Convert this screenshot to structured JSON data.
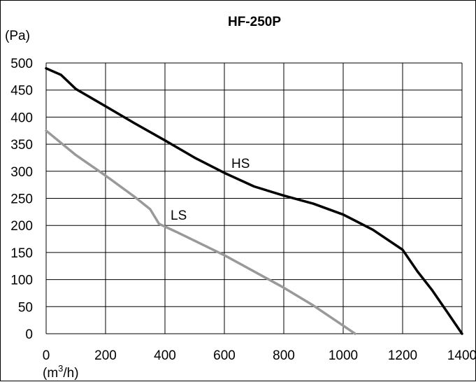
{
  "chart_data": {
    "type": "line",
    "title": "HF-250P",
    "ylabel": "(Pa)",
    "xlabel_base": "(m",
    "xlabel_sup": "3",
    "xlabel_tail": "/h)",
    "xlim": [
      0,
      1400
    ],
    "ylim": [
      0,
      500
    ],
    "x_ticks": [
      "0",
      "200",
      "400",
      "600",
      "800",
      "1000",
      "1200",
      "1400"
    ],
    "y_ticks": [
      "500",
      "450",
      "400",
      "350",
      "300",
      "250",
      "200",
      "150",
      "100",
      "50",
      "0"
    ],
    "x_tick_values": [
      0,
      200,
      400,
      600,
      800,
      1000,
      1200,
      1400
    ],
    "y_tick_values": [
      500,
      450,
      400,
      350,
      300,
      250,
      200,
      150,
      100,
      50,
      0
    ],
    "grid": true,
    "series": [
      {
        "name": "HS",
        "color": "#000000",
        "x": [
          0,
          50,
          100,
          200,
          300,
          400,
          500,
          600,
          700,
          800,
          900,
          1000,
          1100,
          1200,
          1250,
          1300,
          1350,
          1400
        ],
        "y": [
          490,
          478,
          452,
          420,
          388,
          357,
          325,
          297,
          272,
          255,
          240,
          220,
          192,
          155,
          115,
          80,
          40,
          0
        ]
      },
      {
        "name": "LS",
        "color": "#999999",
        "x": [
          0,
          100,
          200,
          300,
          350,
          380,
          450,
          600,
          800,
          900,
          1000,
          1040
        ],
        "y": [
          375,
          330,
          292,
          252,
          230,
          203,
          185,
          145,
          85,
          52,
          15,
          0
        ]
      }
    ]
  }
}
